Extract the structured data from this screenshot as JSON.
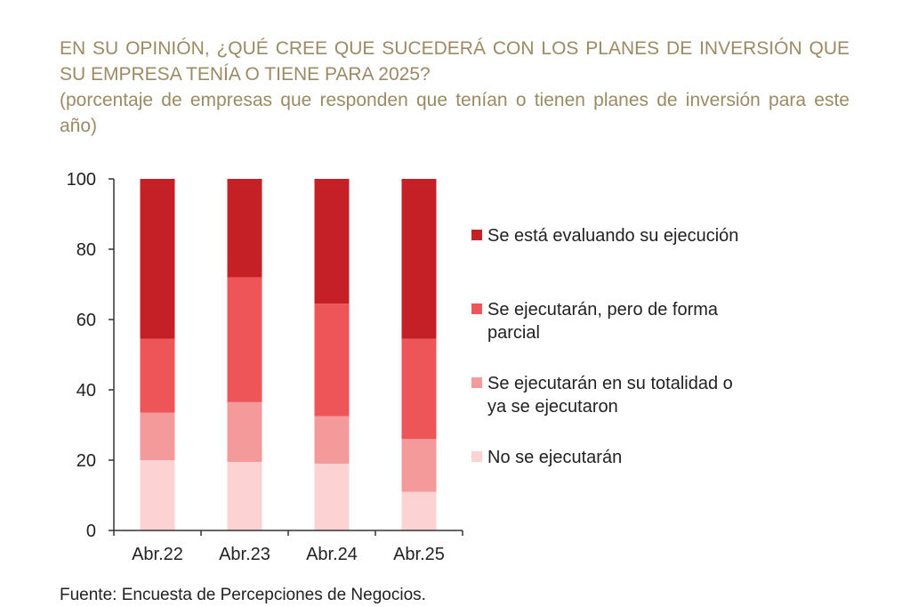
{
  "header": {
    "title": "EN SU OPINIÓN, ¿QUÉ CREE QUE SUCEDERÁ CON LOS PLANES DE INVERSIÓN QUE SU EMPRESA TENÍA O TIENE PARA 2025?",
    "subtitle": "(porcentaje de empresas que responden que tenían o tienen planes de inversión para este año)"
  },
  "footer": {
    "source": "Fuente: Encuesta de Percepciones de Negocios."
  },
  "colors": {
    "evaluando": "#c42026",
    "parcial": "#ee5558",
    "totalidad": "#f49a9a",
    "no_ejecutaran": "#fcd2d2",
    "title": "#9c8a64",
    "axis": "#333333"
  },
  "chart_data": {
    "type": "bar",
    "stacked": true,
    "categories": [
      "Abr.22",
      "Abr.23",
      "Abr.24",
      "Abr.25"
    ],
    "ylim": [
      0,
      100
    ],
    "yticks": [
      "0",
      "20",
      "40",
      "60",
      "80",
      "100"
    ],
    "legend_position": "right",
    "grid": false,
    "series": [
      {
        "key": "no_ejecutaran",
        "name": "No se ejecutarán",
        "values": [
          20,
          19.5,
          19,
          11
        ]
      },
      {
        "key": "totalidad",
        "name": "Se ejecutarán en su totalidad o ya se ejecutaron",
        "values": [
          13.5,
          17,
          13.5,
          15
        ]
      },
      {
        "key": "parcial",
        "name": "Se ejecutarán, pero de forma parcial",
        "values": [
          21,
          35.5,
          32,
          28.5
        ]
      },
      {
        "key": "evaluando",
        "name": "Se está evaluando su ejecución",
        "values": [
          45.5,
          28,
          35.5,
          45.5
        ]
      }
    ],
    "legend_order": [
      "evaluando",
      "parcial",
      "totalidad",
      "no_ejecutaran"
    ]
  }
}
